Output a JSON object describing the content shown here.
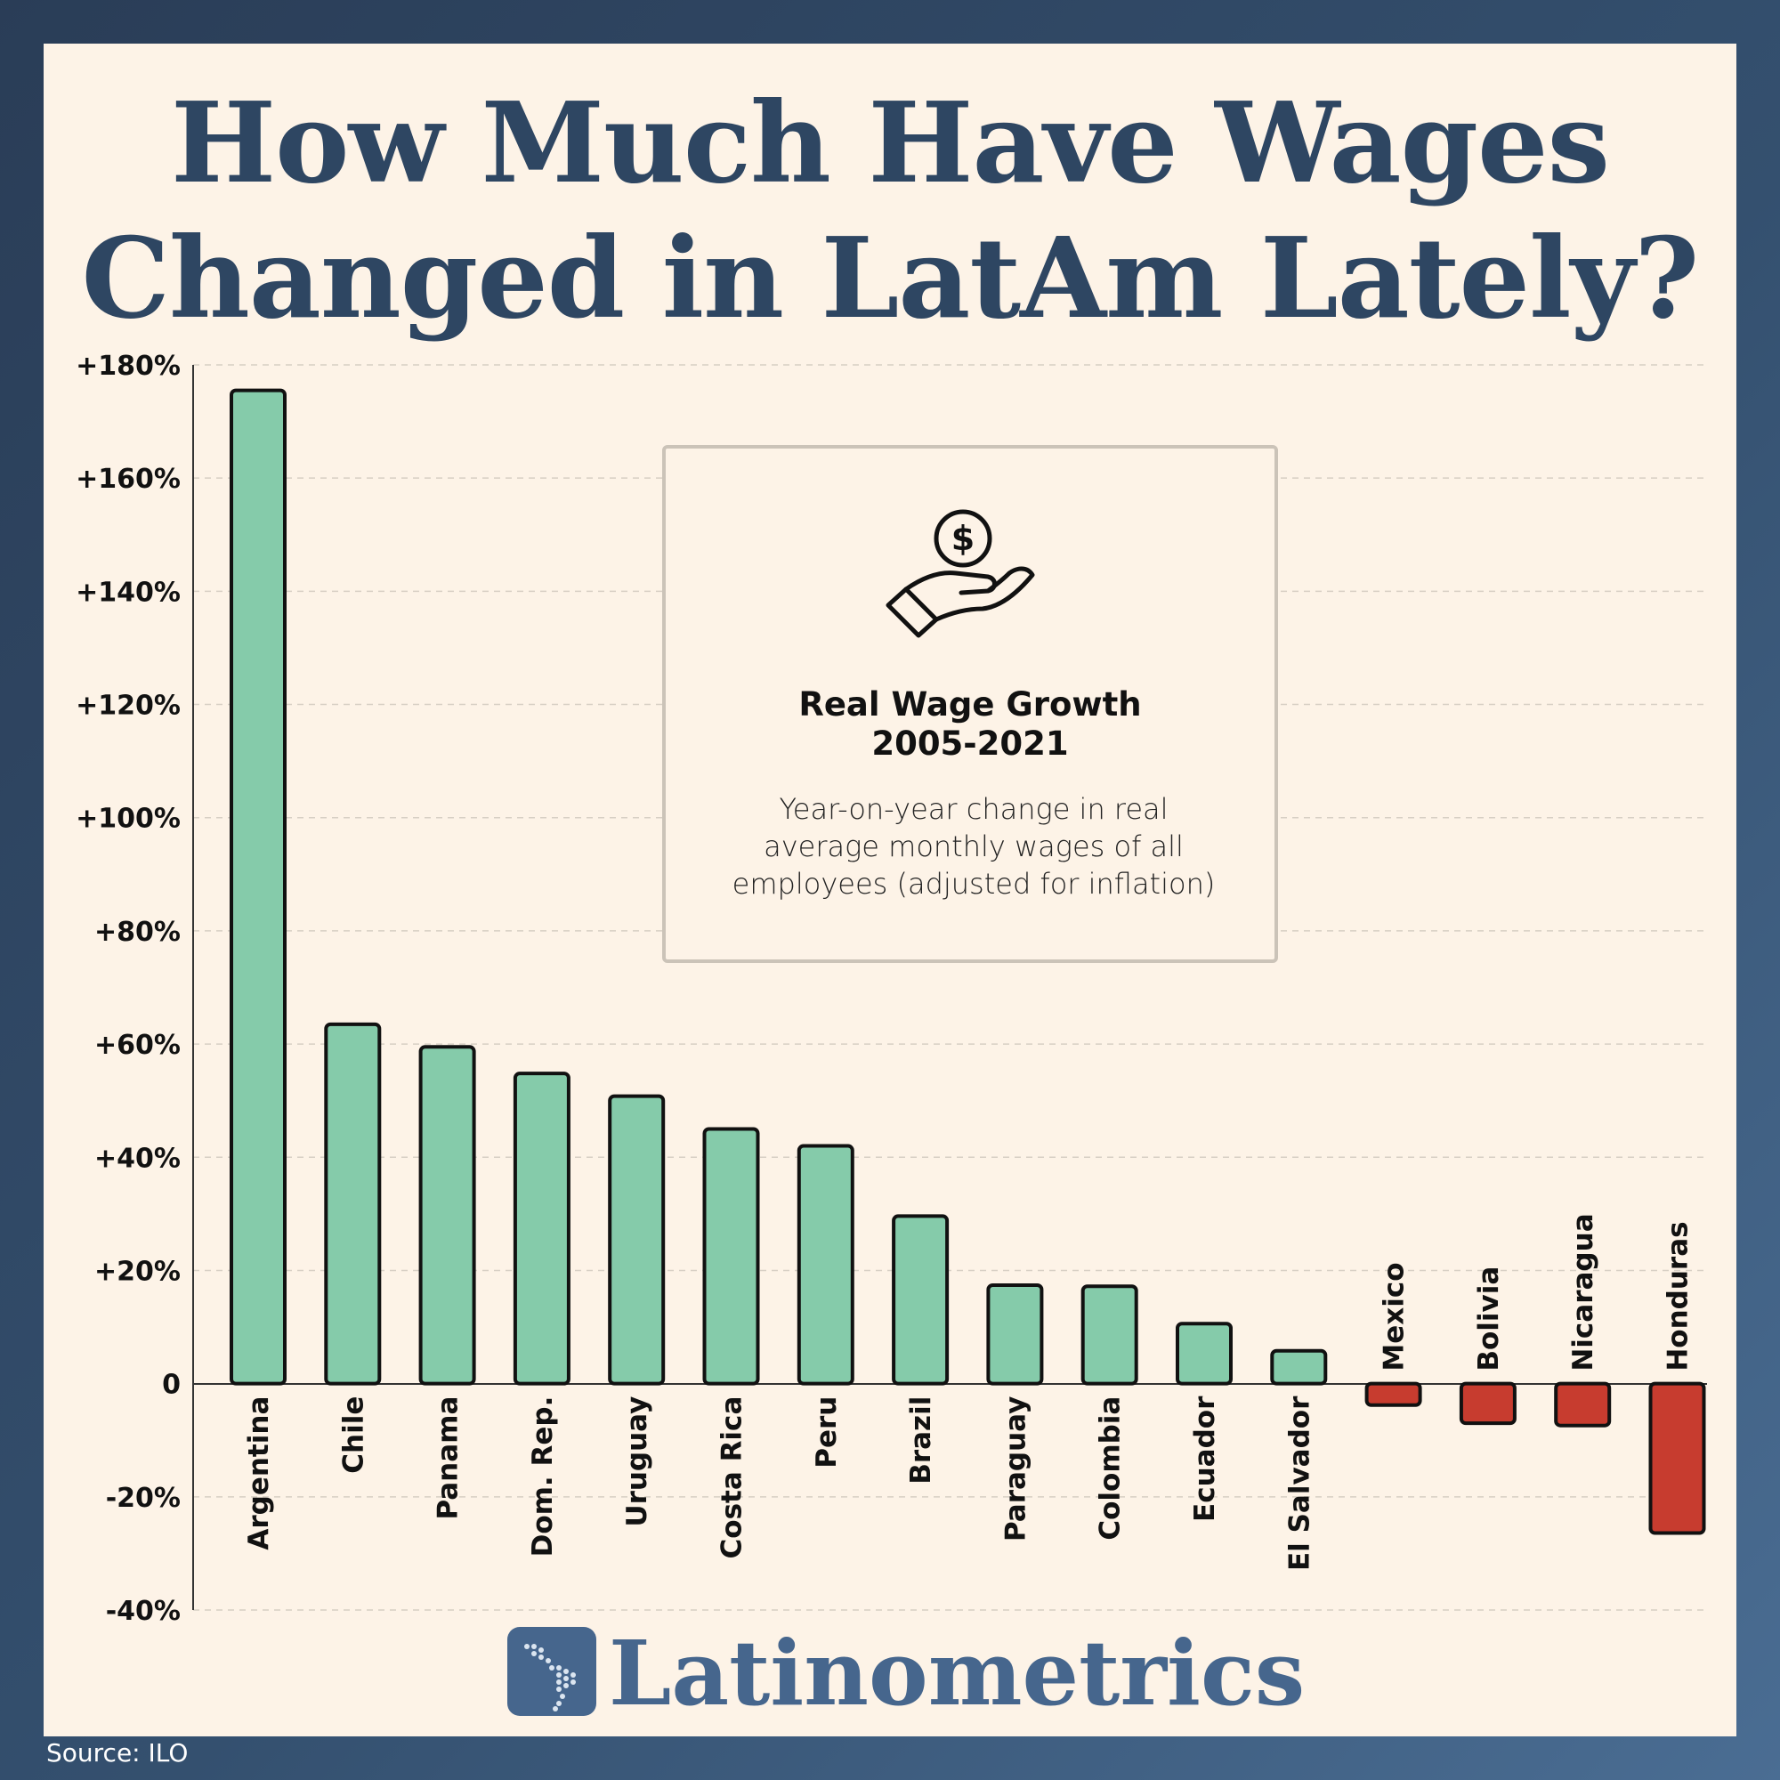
{
  "title": {
    "line1": "How Much Have Wages",
    "line2": "Changed in LatAm Lately?"
  },
  "info_box": {
    "icon": "dollar-coin-hand-icon",
    "heading_line1": "Real Wage Growth",
    "heading_line2": "2005-2021",
    "description_line1": "Year-on-year change in real",
    "description_line2": "average monthly wages of all",
    "description_line3": "employees (adjusted for inflation)"
  },
  "brand": {
    "name": "Latinometrics",
    "logo_icon": "latin-america-map-icon"
  },
  "source": "Source: ILO",
  "colors": {
    "positive": "#85cbaa",
    "negative": "#c73c2f",
    "brand": "#46668d",
    "title": "#2e4662"
  },
  "chart_data": {
    "type": "bar",
    "title": "Real Wage Growth 2005-2021",
    "categories": [
      "Argentina",
      "Chile",
      "Panama",
      "Dom. Rep.",
      "Uruguay",
      "Costa Rica",
      "Peru",
      "Brazil",
      "Paraguay",
      "Colombia",
      "Ecuador",
      "El Salvador",
      "Mexico",
      "Bolivia",
      "Nicaragua",
      "Honduras"
    ],
    "values": [
      175.5,
      63.5,
      59.5,
      54.8,
      50.8,
      45.0,
      42.0,
      29.6,
      17.4,
      17.2,
      10.6,
      5.8,
      -3.8,
      -7.0,
      -7.4,
      -26.4
    ],
    "ylim": [
      -40,
      180
    ],
    "yticks": [
      {
        "value": 180,
        "label": "+180%"
      },
      {
        "value": 160,
        "label": "+160%"
      },
      {
        "value": 140,
        "label": "+140%"
      },
      {
        "value": 120,
        "label": "+120%"
      },
      {
        "value": 100,
        "label": "+100%"
      },
      {
        "value": 80,
        "label": "+80%"
      },
      {
        "value": 60,
        "label": "+60%"
      },
      {
        "value": 40,
        "label": "+40%"
      },
      {
        "value": 20,
        "label": "+20%"
      },
      {
        "value": 0,
        "label": "0"
      },
      {
        "value": -20,
        "label": "-20%"
      },
      {
        "value": -40,
        "label": "-40%"
      }
    ],
    "grid": true,
    "xlabel": "",
    "ylabel": ""
  }
}
